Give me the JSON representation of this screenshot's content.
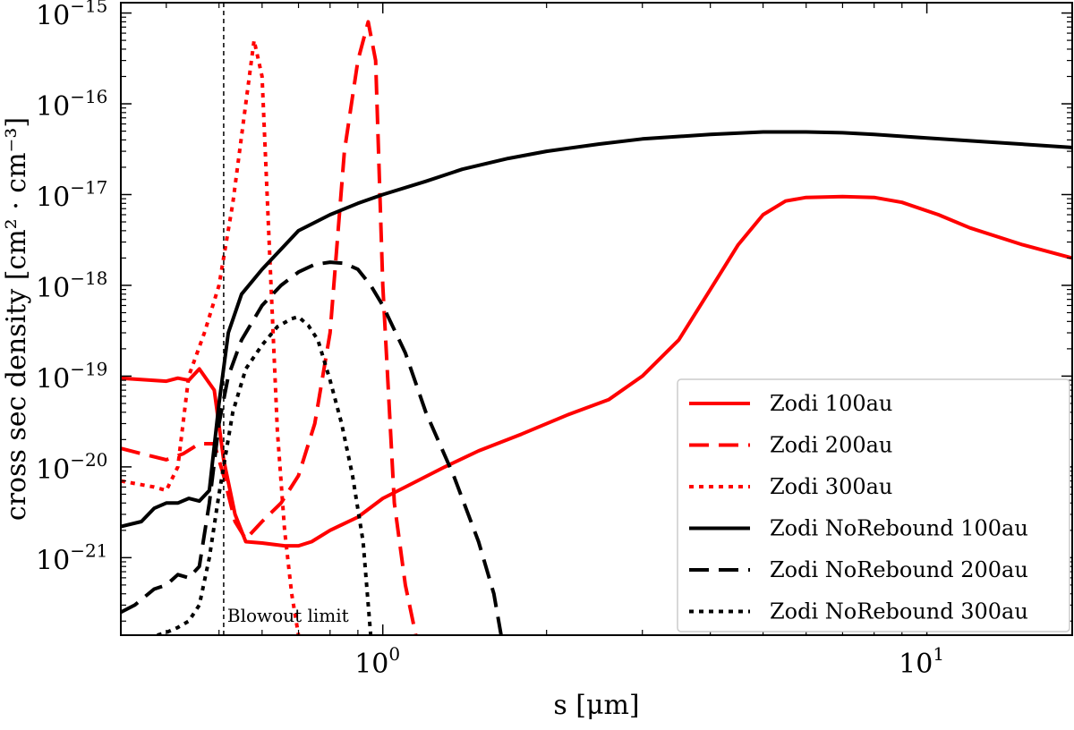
{
  "chart_data": {
    "type": "line",
    "title": "",
    "xlabel": "s [μm]",
    "ylabel": "cross sec density [cm² · cm⁻³]",
    "xscale": "log",
    "yscale": "log",
    "xlim": [
      0.33,
      18.5
    ],
    "ylim": [
      1.4e-22,
      1.3e-15
    ],
    "grid": false,
    "legend_position": "lower-right",
    "x_ticks": [
      {
        "value": 1,
        "label": "10",
        "exp": "0"
      },
      {
        "value": 10,
        "label": "10",
        "exp": "1"
      }
    ],
    "y_ticks": [
      {
        "value": 1e-21,
        "label": "10",
        "exp": "−21"
      },
      {
        "value": 1e-20,
        "label": "10",
        "exp": "−20"
      },
      {
        "value": 1e-19,
        "label": "10",
        "exp": "−19"
      },
      {
        "value": 1e-18,
        "label": "10",
        "exp": "−18"
      },
      {
        "value": 1e-17,
        "label": "10",
        "exp": "−17"
      },
      {
        "value": 1e-16,
        "label": "10",
        "exp": "−16"
      },
      {
        "value": 1e-15,
        "label": "10",
        "exp": "−15"
      }
    ],
    "vline": {
      "x": 0.51,
      "label": "Blowout limit"
    },
    "series": [
      {
        "name": "Zodi 100au",
        "color": "#ff0000",
        "style": "solid",
        "x": [
          0.33,
          0.4,
          0.42,
          0.44,
          0.46,
          0.49,
          0.51,
          0.535,
          0.56,
          0.6,
          0.66,
          0.7,
          0.74,
          0.8,
          0.9,
          1.0,
          1.1,
          1.3,
          1.5,
          1.8,
          2.2,
          2.6,
          3.0,
          3.5,
          4.0,
          4.5,
          5.0,
          5.5,
          6.0,
          7.0,
          8.0,
          9.0,
          10.5,
          12.0,
          15.0,
          18.5
        ],
        "y": [
          9.5e-20,
          8.8e-20,
          9.5e-20,
          9e-20,
          1.2e-19,
          7e-20,
          1.2e-20,
          3e-21,
          1.5e-21,
          1.45e-21,
          1.35e-21,
          1.35e-21,
          1.5e-21,
          2e-21,
          2.8e-21,
          4.5e-21,
          6e-21,
          1e-20,
          1.5e-20,
          2.3e-20,
          3.8e-20,
          5.5e-20,
          1e-19,
          2.5e-19,
          9e-19,
          2.8e-18,
          6e-18,
          8.5e-18,
          9.3e-18,
          9.5e-18,
          9.3e-18,
          8.2e-18,
          6e-18,
          4.3e-18,
          2.8e-18,
          2e-18
        ]
      },
      {
        "name": "Zodi 200au",
        "color": "#ff0000",
        "style": "dashed",
        "x": [
          0.33,
          0.36,
          0.4,
          0.43,
          0.46,
          0.49,
          0.51,
          0.535,
          0.56,
          0.6,
          0.65,
          0.7,
          0.75,
          0.8,
          0.85,
          0.9,
          0.94,
          0.97,
          1.0,
          1.05,
          1.1,
          1.15
        ],
        "y": [
          1.6e-20,
          1.4e-20,
          1.2e-20,
          1.4e-20,
          1.8e-20,
          1.8e-20,
          8e-21,
          2.5e-21,
          1.6e-21,
          2.5e-21,
          4e-21,
          8e-21,
          3e-20,
          3e-19,
          3e-17,
          3e-16,
          8e-16,
          3e-16,
          1e-18,
          4e-21,
          5e-22,
          1.4e-22
        ]
      },
      {
        "name": "Zodi 300au",
        "color": "#ff0000",
        "style": "dotted",
        "x": [
          0.33,
          0.38,
          0.4,
          0.42,
          0.44,
          0.47,
          0.5,
          0.53,
          0.56,
          0.58,
          0.6,
          0.62,
          0.64,
          0.66,
          0.68,
          0.7
        ],
        "y": [
          7e-21,
          6e-21,
          5.5e-21,
          1e-20,
          1e-19,
          3e-19,
          1e-18,
          8e-18,
          1e-16,
          5e-16,
          2e-16,
          2e-18,
          2.5e-20,
          2e-21,
          4e-22,
          1.4e-22
        ]
      },
      {
        "name": "Zodi NoRebound 100au",
        "color": "#000000",
        "style": "solid",
        "x": [
          0.33,
          0.36,
          0.38,
          0.4,
          0.42,
          0.44,
          0.46,
          0.48,
          0.5,
          0.52,
          0.55,
          0.6,
          0.65,
          0.7,
          0.8,
          0.9,
          1.0,
          1.2,
          1.4,
          1.7,
          2.0,
          2.5,
          3.0,
          4.0,
          5.0,
          6.0,
          7.0,
          8.0,
          10.0,
          13.0,
          18.5
        ],
        "y": [
          2.2e-21,
          2.5e-21,
          3.5e-21,
          4e-21,
          4e-21,
          4.5e-21,
          4.2e-21,
          5.5e-21,
          5e-20,
          3e-19,
          8e-19,
          1.5e-18,
          2.5e-18,
          4e-18,
          6e-18,
          8e-18,
          1e-17,
          1.4e-17,
          1.9e-17,
          2.5e-17,
          3e-17,
          3.6e-17,
          4.1e-17,
          4.6e-17,
          4.9e-17,
          4.9e-17,
          4.8e-17,
          4.6e-17,
          4.2e-17,
          3.8e-17,
          3.3e-17
        ]
      },
      {
        "name": "Zodi NoRebound 200au",
        "color": "#000000",
        "style": "dashed",
        "x": [
          0.33,
          0.35,
          0.38,
          0.4,
          0.42,
          0.44,
          0.46,
          0.48,
          0.5,
          0.52,
          0.55,
          0.6,
          0.65,
          0.7,
          0.75,
          0.8,
          0.85,
          0.9,
          0.95,
          1.0,
          1.1,
          1.2,
          1.35,
          1.5,
          1.6,
          1.65
        ],
        "y": [
          2.5e-22,
          3e-22,
          4.5e-22,
          5e-22,
          6.5e-22,
          6e-22,
          8e-22,
          4e-21,
          3e-20,
          1e-19,
          2.5e-19,
          6e-19,
          1e-18,
          1.4e-18,
          1.7e-18,
          1.8e-18,
          1.75e-18,
          1.5e-18,
          1e-18,
          6e-19,
          1.8e-19,
          4e-20,
          8e-21,
          1.5e-21,
          4e-22,
          1.4e-22
        ]
      },
      {
        "name": "Zodi NoRebound 300au",
        "color": "#000000",
        "style": "dotted",
        "x": [
          0.385,
          0.4,
          0.42,
          0.44,
          0.46,
          0.48,
          0.5,
          0.53,
          0.56,
          0.6,
          0.64,
          0.68,
          0.7,
          0.73,
          0.76,
          0.8,
          0.84,
          0.88,
          0.92,
          0.95
        ],
        "y": [
          1.4e-22,
          1.5e-22,
          1.7e-22,
          2e-22,
          3e-22,
          1e-21,
          5e-21,
          4e-20,
          1.2e-19,
          2.2e-19,
          3.5e-19,
          4.3e-19,
          4.5e-19,
          3.6e-19,
          2.5e-19,
          9e-20,
          3e-20,
          8e-21,
          1.5e-21,
          1.4e-22
        ]
      }
    ]
  }
}
